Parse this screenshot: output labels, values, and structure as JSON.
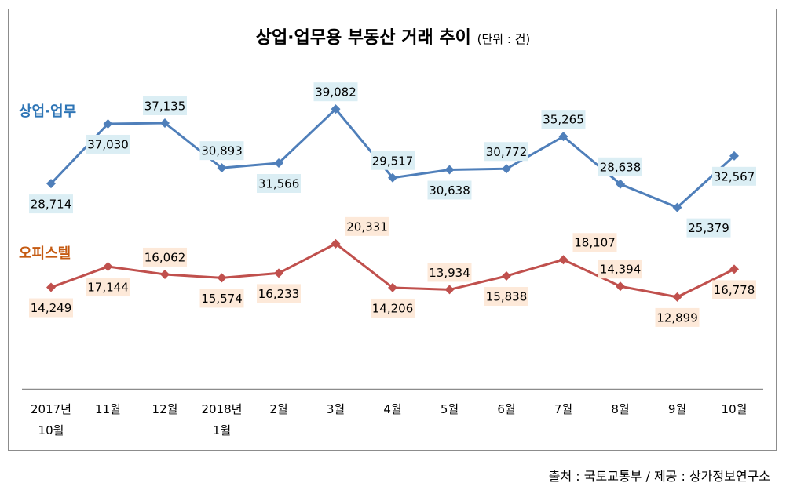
{
  "title": "상업·업무용 부동산 거래 추이",
  "unit": "(단위 : 건)",
  "source": "출처 : 국토교통부 / 제공 : 상가정보연구소",
  "chart_data": {
    "type": "line",
    "title": "상업·업무용 부동산 거래 추이",
    "subtitle": "(단위 : 건)",
    "xlabel": "",
    "ylabel": "",
    "ylim": [
      0,
      45000
    ],
    "grid": false,
    "legend": "inline-left",
    "categories": [
      [
        "2017년",
        "10월"
      ],
      [
        "11월"
      ],
      [
        "12월"
      ],
      [
        "2018년",
        "1월"
      ],
      [
        "2월"
      ],
      [
        "3월"
      ],
      [
        "4월"
      ],
      [
        "5월"
      ],
      [
        "6월"
      ],
      [
        "7월"
      ],
      [
        "8월"
      ],
      [
        "9월"
      ],
      [
        "10월"
      ]
    ],
    "series": [
      {
        "name": "상업·업무",
        "color": "#4f7fba",
        "label_color": "#2e75b6",
        "label_bg": "#dbeef4",
        "values": [
          28714,
          37030,
          37135,
          30893,
          31566,
          39082,
          29517,
          30638,
          30772,
          35265,
          28638,
          25379,
          32567
        ],
        "labels": [
          "28,714",
          "37,030",
          "37,135",
          "30,893",
          "31,566",
          "39,082",
          "29,517",
          "30,638",
          "30,772",
          "35,265",
          "28,638",
          "25,379",
          "32,567"
        ],
        "label_pos": [
          "below",
          "below",
          "above",
          "above",
          "below",
          "above",
          "above",
          "below",
          "above",
          "above",
          "above",
          "below-right",
          "below"
        ]
      },
      {
        "name": "오피스텔",
        "color": "#c0504d",
        "label_color": "#c55a11",
        "label_bg": "#fde9d9",
        "values": [
          14249,
          17144,
          16062,
          15574,
          16233,
          20331,
          14206,
          13934,
          15838,
          18107,
          14394,
          12899,
          16778
        ],
        "labels": [
          "14,249",
          "17,144",
          "16,062",
          "15,574",
          "16,233",
          "20,331",
          "14,206",
          "13,934",
          "15,838",
          "18,107",
          "14,394",
          "12,899",
          "16,778"
        ],
        "label_pos": [
          "below",
          "below",
          "above",
          "below",
          "below",
          "above-right",
          "below",
          "above",
          "below",
          "above-right",
          "above",
          "below",
          "below"
        ]
      }
    ]
  }
}
